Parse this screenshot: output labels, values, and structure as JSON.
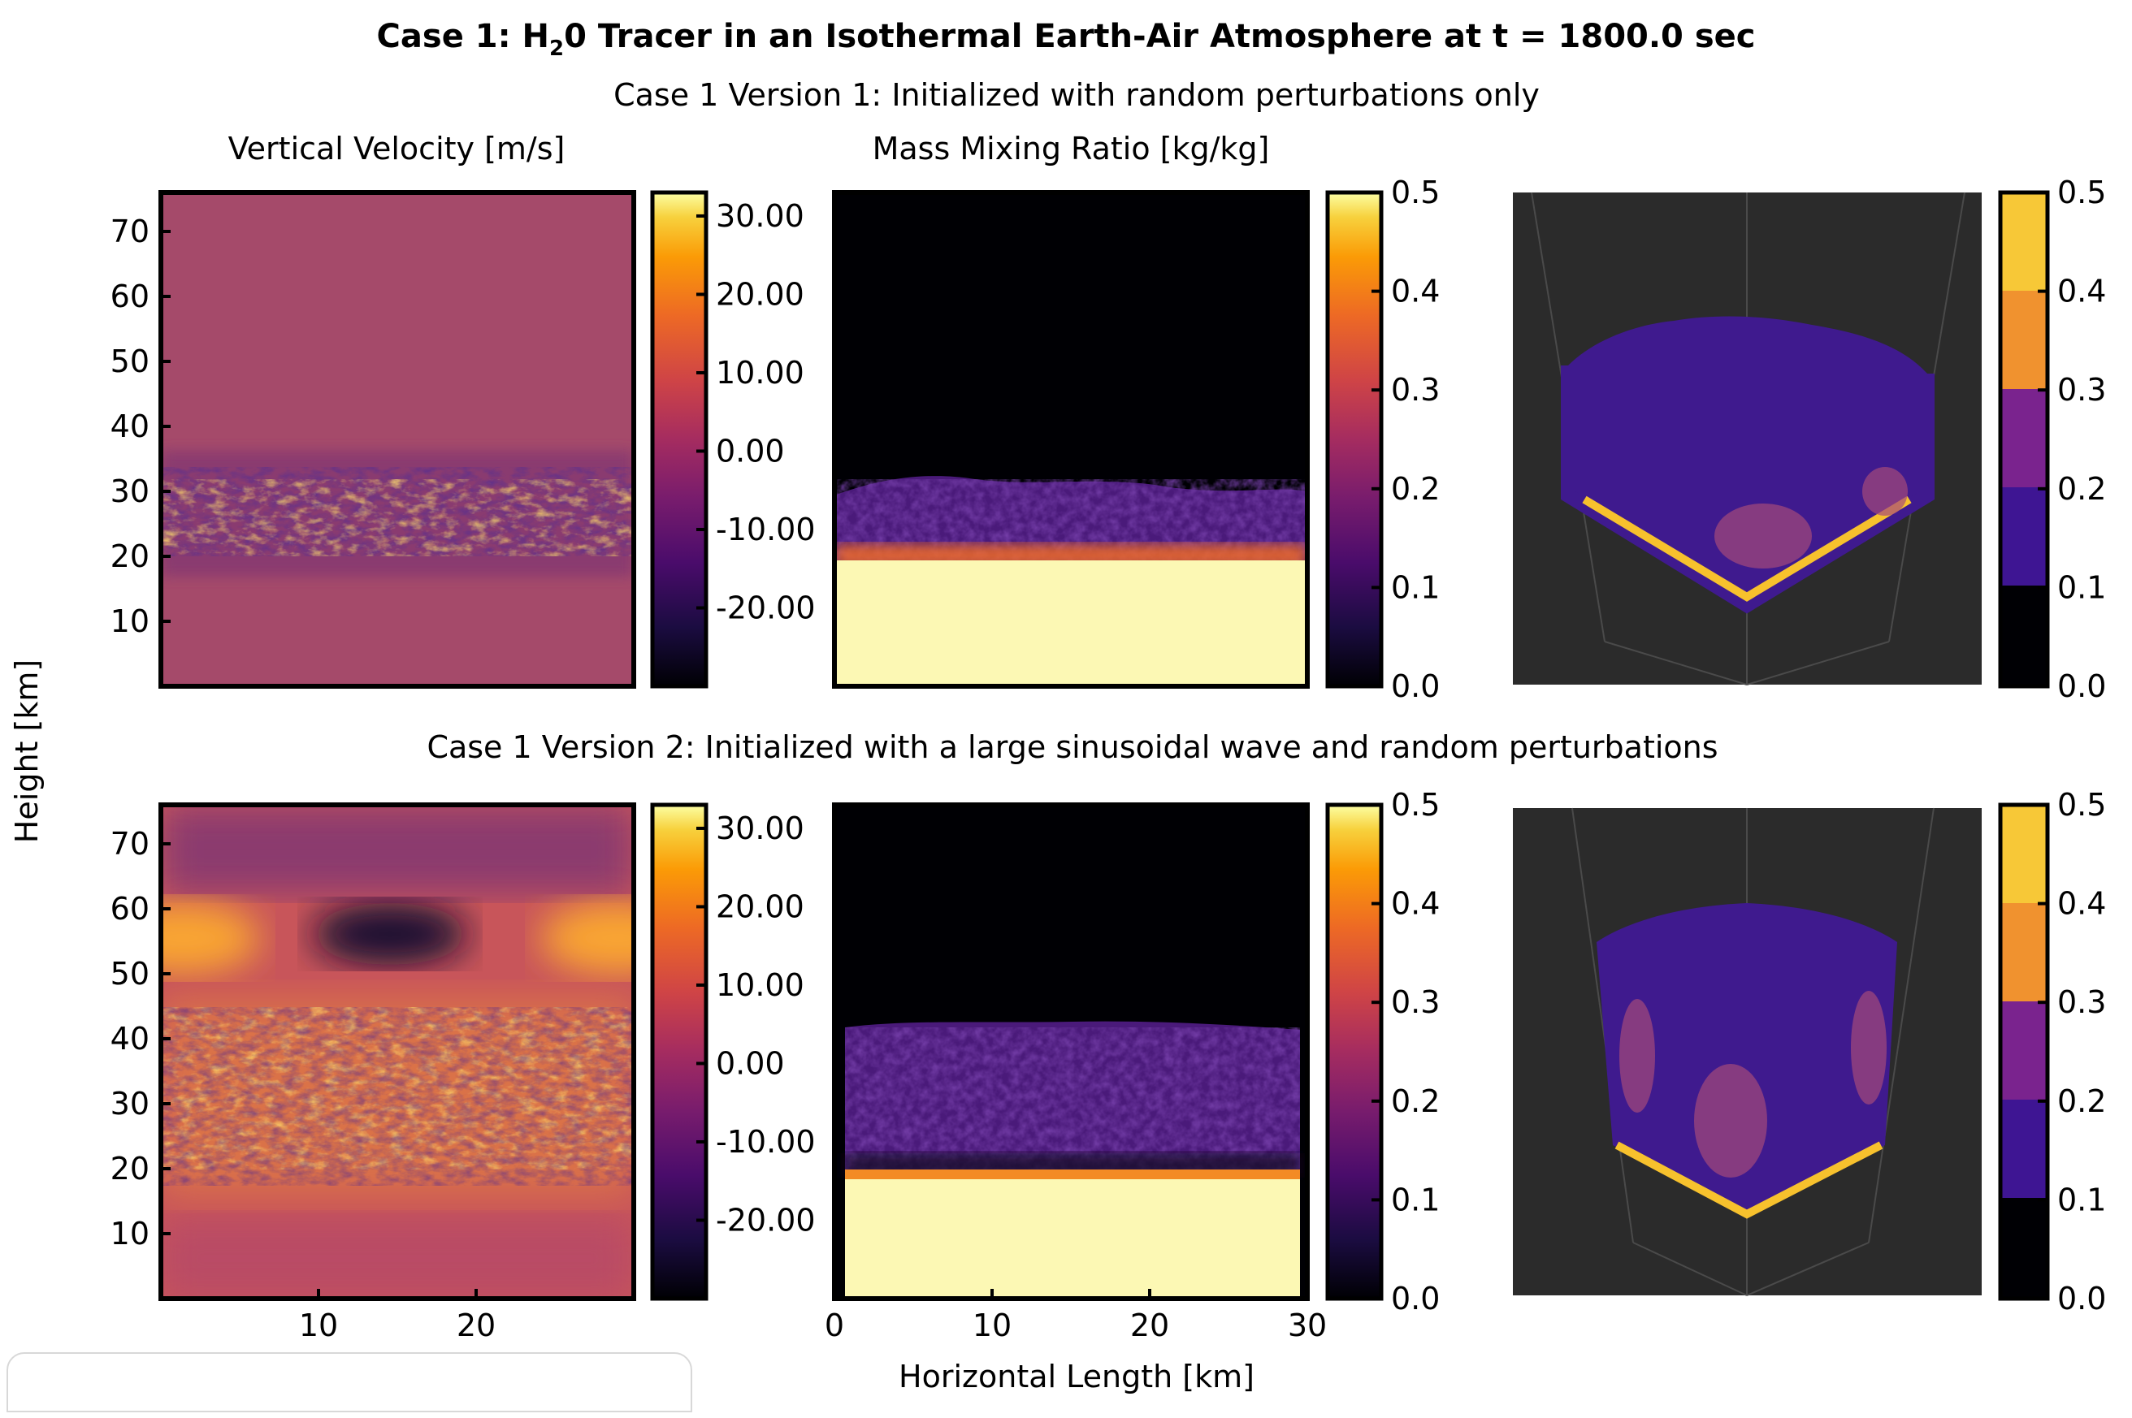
{
  "figure": {
    "title_parts": [
      "Case 1: H",
      "2",
      "0 Tracer in an Isothermal Earth-Air Atmosphere at t = 1800.0 sec"
    ],
    "shared_ylabel": "Height [km]",
    "shared_xlabel": "Horizontal Length [km]"
  },
  "rows": [
    {
      "title": "Case 1 Version 1: Initialized with random perturbations only"
    },
    {
      "title": "Case 1 Version 2: Initialized with a large sinusoidal wave and random perturbations"
    }
  ],
  "colors": {
    "colormap": "inferno",
    "panel3d_bg": "#2b2b2b",
    "panel3d_lines": "#4a4a4a"
  },
  "chart_data": [
    {
      "type": "heatmap",
      "panel": "row1-velocity",
      "title": "Vertical Velocity [m/s]",
      "ylabel": "Height [km]",
      "yticks": [
        10,
        20,
        30,
        40,
        50,
        60,
        70
      ],
      "ylim": [
        0,
        76
      ],
      "xlim": [
        0,
        30
      ],
      "colorbar": {
        "ticks": [
          "30.00",
          "20.00",
          "10.00",
          "0.00",
          "-10.00",
          "-20.00"
        ],
        "range": [
          -30,
          33
        ],
        "colormap": "inferno"
      },
      "feature": "turbulent mixing layer between ~18 and ~32 km, near-zero velocity elsewhere"
    },
    {
      "type": "heatmap",
      "panel": "row1-mixing-ratio",
      "title": "Mass Mixing Ratio [kg/kg]",
      "xlim": [
        0,
        30
      ],
      "colorbar": {
        "ticks": [
          "0.5",
          "0.4",
          "0.3",
          "0.2",
          "0.1",
          "0.0"
        ],
        "range": [
          0,
          0.5
        ],
        "colormap": "inferno"
      },
      "feature": "saturated (0.5) below ~20 km, wispy tracer 20-32 km, zero above"
    },
    {
      "type": "heatmap",
      "panel": "row1-3d",
      "colorbar": {
        "ticks": [
          "0.5",
          "0.4",
          "0.3",
          "0.2",
          "0.1",
          "0.0"
        ],
        "range": [
          0,
          0.5
        ],
        "levels": 5
      },
      "feature": "3D isometric volume render of tracer"
    },
    {
      "type": "heatmap",
      "panel": "row2-velocity",
      "ylabel": "Height [km]",
      "yticks": [
        10,
        20,
        30,
        40,
        50,
        60,
        70
      ],
      "xticks": [
        10,
        20
      ],
      "ylim": [
        0,
        76
      ],
      "xlim": [
        0,
        30
      ],
      "colorbar": {
        "ticks": [
          "30.00",
          "20.00",
          "10.00",
          "0.00",
          "-10.00",
          "-20.00"
        ],
        "range": [
          -30,
          33
        ],
        "colormap": "inferno"
      },
      "feature": "large sinusoidal wave with downdraft core near x=15, y=55 km"
    },
    {
      "type": "heatmap",
      "panel": "row2-mixing-ratio",
      "xticks": [
        0,
        10,
        20,
        30
      ],
      "xlim": [
        0,
        30
      ],
      "colorbar": {
        "ticks": [
          "0.5",
          "0.4",
          "0.3",
          "0.2",
          "0.1",
          "0.0"
        ],
        "range": [
          0,
          0.5
        ],
        "colormap": "inferno"
      },
      "feature": "saturated below ~18 km, tracer layer ~18-40 km"
    },
    {
      "type": "heatmap",
      "panel": "row2-3d",
      "colorbar": {
        "ticks": [
          "0.5",
          "0.4",
          "0.3",
          "0.2",
          "0.1",
          "0.0"
        ],
        "range": [
          0,
          0.5
        ],
        "levels": 5
      },
      "feature": "3D isometric volume render of tracer"
    }
  ]
}
